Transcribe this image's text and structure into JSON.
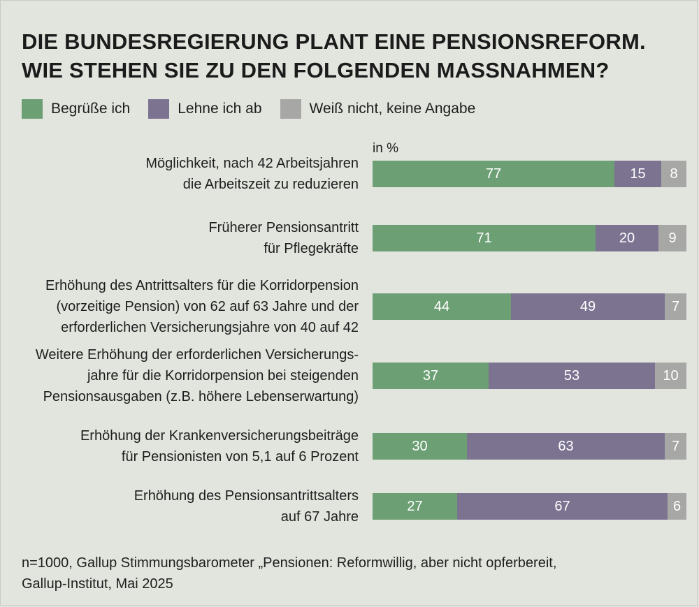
{
  "title_lines": [
    "DIE BUNDESREGIERUNG PLANT EINE PENSIONSREFORM.",
    "WIE STEHEN SIE ZU DEN FOLGENDEN MASSNAHMEN?"
  ],
  "unit_label": "in %",
  "footer_lines": [
    "n=1000, Gallup Stimmungsbarometer „Pensionen: Reformwillig, aber nicht opferbereit,",
    "Gallup-Institut, Mai 2025"
  ],
  "colors": {
    "approve": "#6c9f74",
    "reject": "#7c7391",
    "unknown": "#a7a8a6",
    "background": "#e2e5de"
  },
  "chart_data": {
    "type": "bar",
    "orientation": "horizontal",
    "stacked": true,
    "title": "DIE BUNDESREGIERUNG PLANT EINE PENSIONSREFORM. WIE STEHEN SIE ZU DEN FOLGENDEN MASSNAHMEN?",
    "unit": "in %",
    "legend_position": "top-left",
    "grid": false,
    "xlim": [
      0,
      100
    ],
    "categories": [
      [
        "Möglichkeit, nach 42 Arbeitsjahren",
        "die Arbeitszeit zu reduzieren"
      ],
      [
        "Früherer Pensionsantritt",
        "für Pflegekräfte"
      ],
      [
        "Erhöhung des Antrittsalters für die Korridorpension",
        "(vorzeitige Pension) von 62 auf 63 Jahre und der",
        "erforderlichen Versicherungsjahre von 40 auf 42"
      ],
      [
        "Weitere Erhöhung der erforderlichen Versicherungs-",
        "jahre für die Korridorpension bei steigenden",
        "Pensionsausgaben (z.B. höhere Lebenserwartung)"
      ],
      [
        "Erhöhung der Krankenversicherungsbeiträge",
        "für Pensionisten von 5,1 auf 6 Prozent"
      ],
      [
        "Erhöhung des Pensionsantrittsalters",
        "auf 67 Jahre"
      ]
    ],
    "series": [
      {
        "name": "Begrüße ich",
        "color_key": "approve",
        "values": [
          77,
          71,
          44,
          37,
          30,
          27
        ]
      },
      {
        "name": "Lehne ich ab",
        "color_key": "reject",
        "values": [
          15,
          20,
          49,
          53,
          63,
          67
        ]
      },
      {
        "name": "Weiß nicht, keine Angabe",
        "color_key": "unknown",
        "values": [
          8,
          9,
          7,
          10,
          7,
          6
        ]
      }
    ]
  }
}
